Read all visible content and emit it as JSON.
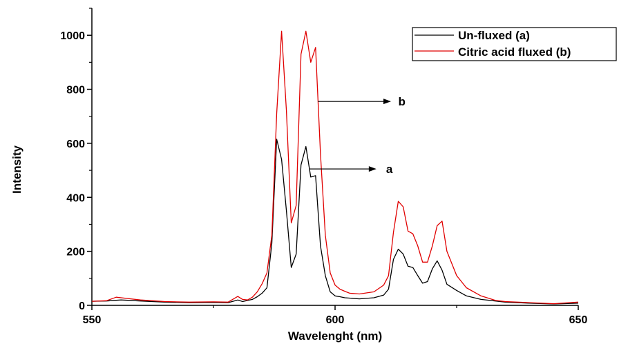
{
  "chart_data": {
    "type": "line",
    "xlabel": "Wavelenght (nm)",
    "ylabel": "Intensity",
    "xlim": [
      550,
      650
    ],
    "ylim": [
      0,
      1100
    ],
    "x_ticks": [
      550,
      600,
      650
    ],
    "y_ticks": [
      0,
      200,
      400,
      600,
      800,
      1000
    ],
    "legend_position": "top-right",
    "grid": false,
    "series": [
      {
        "name": "Un-fluxed (a)",
        "color": "#000000",
        "points": [
          [
            550,
            15
          ],
          [
            553,
            16
          ],
          [
            556,
            20
          ],
          [
            560,
            16
          ],
          [
            565,
            12
          ],
          [
            570,
            10
          ],
          [
            575,
            11
          ],
          [
            578,
            10
          ],
          [
            580,
            20
          ],
          [
            581,
            14
          ],
          [
            583,
            22
          ],
          [
            584,
            32
          ],
          [
            585,
            45
          ],
          [
            586,
            65
          ],
          [
            587,
            230
          ],
          [
            588,
            615
          ],
          [
            589,
            540
          ],
          [
            590,
            350
          ],
          [
            591,
            140
          ],
          [
            592,
            190
          ],
          [
            593,
            520
          ],
          [
            594,
            588
          ],
          [
            595,
            475
          ],
          [
            596,
            480
          ],
          [
            597,
            220
          ],
          [
            598,
            110
          ],
          [
            599,
            50
          ],
          [
            600,
            35
          ],
          [
            601,
            32
          ],
          [
            602,
            28
          ],
          [
            605,
            24
          ],
          [
            608,
            28
          ],
          [
            610,
            38
          ],
          [
            611,
            60
          ],
          [
            612,
            170
          ],
          [
            613,
            208
          ],
          [
            614,
            190
          ],
          [
            615,
            145
          ],
          [
            616,
            140
          ],
          [
            617,
            110
          ],
          [
            618,
            82
          ],
          [
            619,
            88
          ],
          [
            620,
            135
          ],
          [
            621,
            165
          ],
          [
            622,
            130
          ],
          [
            623,
            78
          ],
          [
            625,
            55
          ],
          [
            627,
            35
          ],
          [
            630,
            22
          ],
          [
            635,
            12
          ],
          [
            640,
            8
          ],
          [
            645,
            5
          ],
          [
            650,
            8
          ]
        ]
      },
      {
        "name": "Citric acid fluxed (b)",
        "color": "#e00000",
        "points": [
          [
            550,
            15
          ],
          [
            553,
            17
          ],
          [
            555,
            30
          ],
          [
            558,
            24
          ],
          [
            560,
            20
          ],
          [
            565,
            14
          ],
          [
            570,
            12
          ],
          [
            575,
            13
          ],
          [
            578,
            12
          ],
          [
            580,
            33
          ],
          [
            581,
            22
          ],
          [
            582,
            20
          ],
          [
            583,
            30
          ],
          [
            584,
            50
          ],
          [
            585,
            80
          ],
          [
            586,
            120
          ],
          [
            587,
            260
          ],
          [
            588,
            710
          ],
          [
            589,
            1015
          ],
          [
            590,
            720
          ],
          [
            591,
            305
          ],
          [
            592,
            370
          ],
          [
            593,
            930
          ],
          [
            594,
            1015
          ],
          [
            595,
            900
          ],
          [
            596,
            955
          ],
          [
            597,
            560
          ],
          [
            598,
            260
          ],
          [
            599,
            120
          ],
          [
            600,
            75
          ],
          [
            601,
            60
          ],
          [
            602,
            52
          ],
          [
            603,
            45
          ],
          [
            605,
            42
          ],
          [
            608,
            50
          ],
          [
            610,
            75
          ],
          [
            611,
            110
          ],
          [
            612,
            270
          ],
          [
            613,
            385
          ],
          [
            614,
            365
          ],
          [
            615,
            275
          ],
          [
            616,
            265
          ],
          [
            617,
            220
          ],
          [
            618,
            160
          ],
          [
            619,
            160
          ],
          [
            620,
            220
          ],
          [
            621,
            295
          ],
          [
            622,
            312
          ],
          [
            623,
            200
          ],
          [
            625,
            110
          ],
          [
            627,
            65
          ],
          [
            630,
            35
          ],
          [
            633,
            18
          ],
          [
            635,
            14
          ],
          [
            640,
            10
          ],
          [
            645,
            6
          ],
          [
            650,
            12
          ]
        ]
      }
    ],
    "annotations": [
      {
        "label": "b",
        "from": [
          596.5,
          755
        ],
        "to": [
          611.5,
          755
        ],
        "text_x": 613,
        "text_y": 755
      },
      {
        "label": "a",
        "from": [
          594.8,
          505
        ],
        "to": [
          608.5,
          505
        ],
        "text_x": 610.5,
        "text_y": 505
      }
    ]
  }
}
